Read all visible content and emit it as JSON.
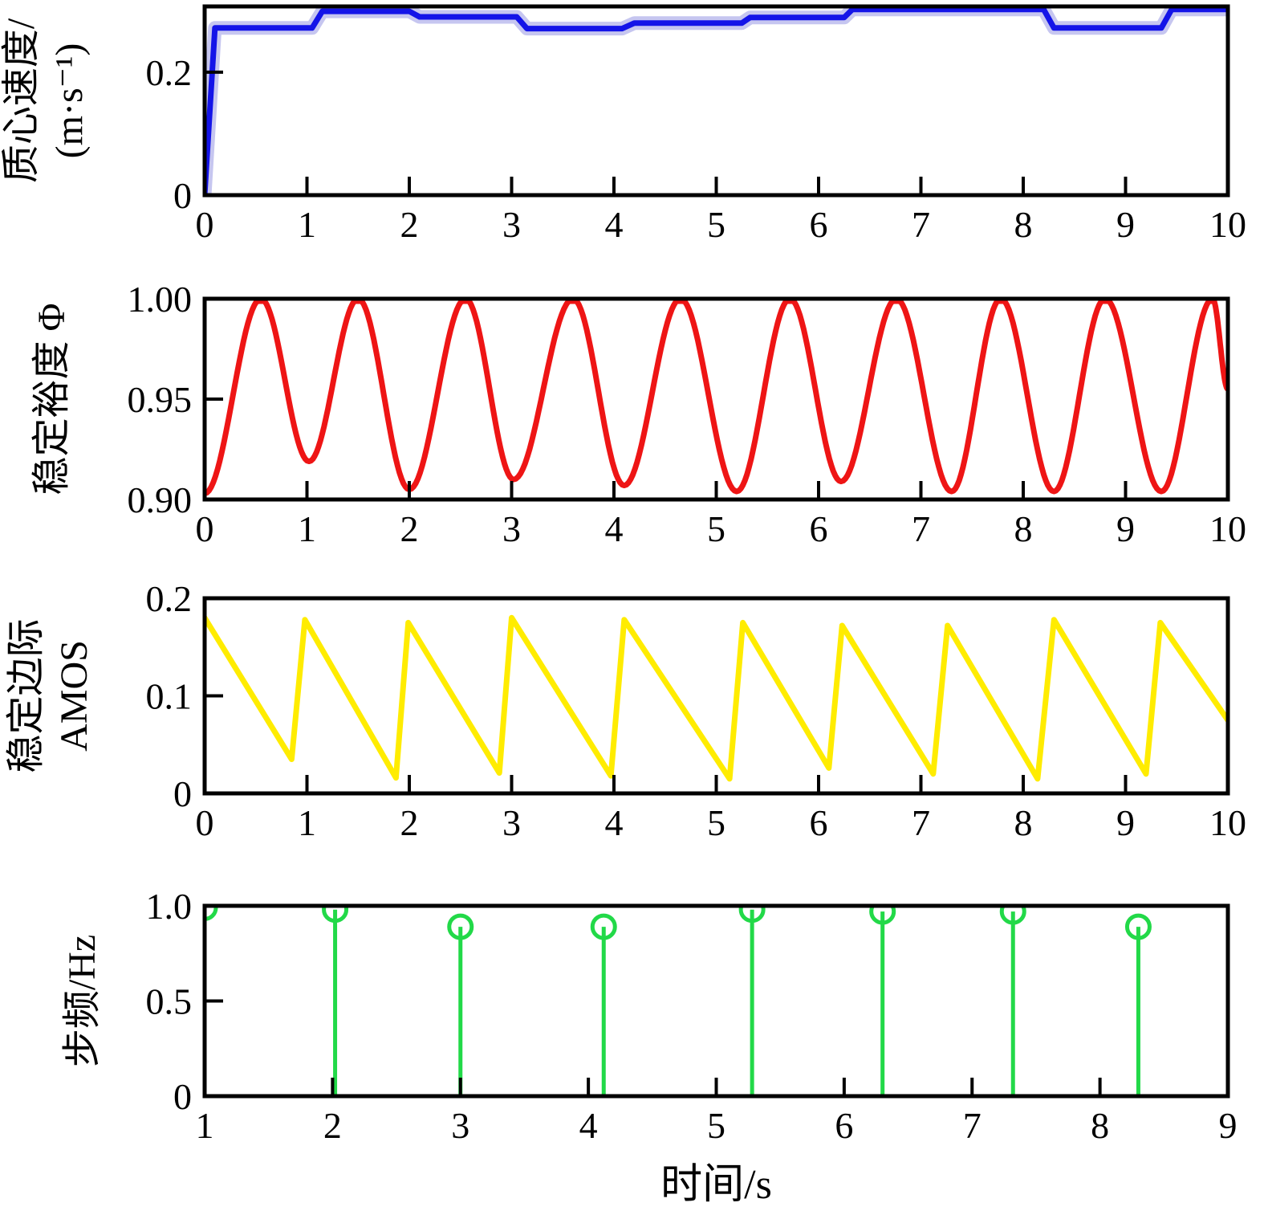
{
  "figure": {
    "background": "#ffffff",
    "axis_color": "#000000",
    "xlabel": "时间/s"
  },
  "chart_data": [
    {
      "type": "line",
      "id": "com-velocity",
      "ylabel_lines": [
        "质心速度/",
        "(m·s⁻¹)"
      ],
      "line_color": "#1414e8",
      "band_color": "#c6c6f0",
      "xlim": [
        0,
        10
      ],
      "ylim": [
        0,
        0.307
      ],
      "grid": false,
      "xticks": {
        "values": [
          0,
          1,
          2,
          3,
          4,
          5,
          6,
          7,
          8,
          9,
          10
        ],
        "labels": [
          "0",
          "1",
          "2",
          "3",
          "4",
          "5",
          "6",
          "7",
          "8",
          "9",
          "10"
        ]
      },
      "yticks": {
        "values": [
          0,
          0.2
        ],
        "labels": [
          "0",
          "0.2"
        ]
      },
      "points": [
        [
          0,
          0
        ],
        [
          0.1,
          0.272
        ],
        [
          1.05,
          0.272
        ],
        [
          1.15,
          0.299
        ],
        [
          2.0,
          0.299
        ],
        [
          2.1,
          0.29
        ],
        [
          3.05,
          0.29
        ],
        [
          3.15,
          0.271
        ],
        [
          4.08,
          0.271
        ],
        [
          4.2,
          0.28
        ],
        [
          5.25,
          0.28
        ],
        [
          5.33,
          0.289
        ],
        [
          6.25,
          0.289
        ],
        [
          6.33,
          0.302
        ],
        [
          8.2,
          0.302
        ],
        [
          8.3,
          0.272
        ],
        [
          9.35,
          0.272
        ],
        [
          9.45,
          0.302
        ],
        [
          10,
          0.302
        ]
      ]
    },
    {
      "type": "line",
      "id": "stability-margin-phi",
      "ylabel_lines": [
        "稳定裕度 Φ"
      ],
      "line_color": "#ee1515",
      "xlim": [
        0,
        10
      ],
      "ylim": [
        0.9,
        1.0
      ],
      "grid": false,
      "interp": "cosine",
      "xticks": {
        "values": [
          0,
          1,
          2,
          3,
          4,
          5,
          6,
          7,
          8,
          9,
          10
        ],
        "labels": [
          "0",
          "1",
          "2",
          "3",
          "4",
          "5",
          "6",
          "7",
          "8",
          "9",
          "10"
        ]
      },
      "yticks": {
        "values": [
          0.9,
          0.95,
          1.0
        ],
        "labels": [
          "0.90",
          "0.95",
          "1.00"
        ]
      },
      "points": [
        [
          0,
          0.903
        ],
        [
          0.55,
          1.0
        ],
        [
          1.02,
          0.919
        ],
        [
          1.5,
          1.0
        ],
        [
          2.0,
          0.905
        ],
        [
          2.55,
          1.0
        ],
        [
          3.02,
          0.91
        ],
        [
          3.6,
          1.0
        ],
        [
          4.1,
          0.907
        ],
        [
          4.65,
          1.0
        ],
        [
          5.2,
          0.904
        ],
        [
          5.72,
          1.0
        ],
        [
          6.22,
          0.909
        ],
        [
          6.76,
          1.0
        ],
        [
          7.3,
          0.904
        ],
        [
          7.78,
          1.0
        ],
        [
          8.3,
          0.904
        ],
        [
          8.8,
          1.0
        ],
        [
          9.35,
          0.904
        ],
        [
          9.85,
          1.0
        ],
        [
          10,
          0.955
        ]
      ]
    },
    {
      "type": "line",
      "id": "amos-margin",
      "ylabel_lines": [
        "稳定边际",
        "AMOS"
      ],
      "line_color": "#ffec00",
      "xlim": [
        0,
        10
      ],
      "ylim": [
        0,
        0.2
      ],
      "grid": false,
      "xticks": {
        "values": [
          0,
          1,
          2,
          3,
          4,
          5,
          6,
          7,
          8,
          9,
          10
        ],
        "labels": [
          "0",
          "1",
          "2",
          "3",
          "4",
          "5",
          "6",
          "7",
          "8",
          "9",
          "10"
        ]
      },
      "yticks": {
        "values": [
          0,
          0.1,
          0.2
        ],
        "labels": [
          "0",
          "0.1",
          "0.2"
        ]
      },
      "points": [
        [
          0,
          0.18
        ],
        [
          0.85,
          0.035
        ],
        [
          0.98,
          0.178
        ],
        [
          1.87,
          0.016
        ],
        [
          1.99,
          0.175
        ],
        [
          2.88,
          0.021
        ],
        [
          3.0,
          0.18
        ],
        [
          3.97,
          0.018
        ],
        [
          4.1,
          0.178
        ],
        [
          5.13,
          0.015
        ],
        [
          5.26,
          0.175
        ],
        [
          6.1,
          0.026
        ],
        [
          6.23,
          0.172
        ],
        [
          7.12,
          0.02
        ],
        [
          7.26,
          0.172
        ],
        [
          8.14,
          0.015
        ],
        [
          8.3,
          0.178
        ],
        [
          9.2,
          0.02
        ],
        [
          9.34,
          0.175
        ],
        [
          10,
          0.075
        ]
      ]
    },
    {
      "type": "stem",
      "id": "step-frequency",
      "ylabel_lines": [
        "步频/Hz"
      ],
      "line_color": "#22d948",
      "xlim": [
        1,
        9
      ],
      "ylim": [
        0,
        1.0
      ],
      "grid": false,
      "xticks": {
        "values": [
          1,
          2,
          3,
          4,
          5,
          6,
          7,
          8,
          9
        ],
        "labels": [
          "1",
          "2",
          "3",
          "4",
          "5",
          "6",
          "7",
          "8",
          "9"
        ]
      },
      "yticks": {
        "values": [
          0,
          0.5,
          1.0
        ],
        "labels": [
          "0",
          "0.5",
          "1.0"
        ]
      },
      "stem_x": [
        1.0,
        2.02,
        3.0,
        4.12,
        5.28,
        6.3,
        7.32,
        8.3
      ],
      "stem_y": [
        0.99,
        0.98,
        0.89,
        0.89,
        0.98,
        0.97,
        0.97,
        0.89
      ]
    }
  ]
}
